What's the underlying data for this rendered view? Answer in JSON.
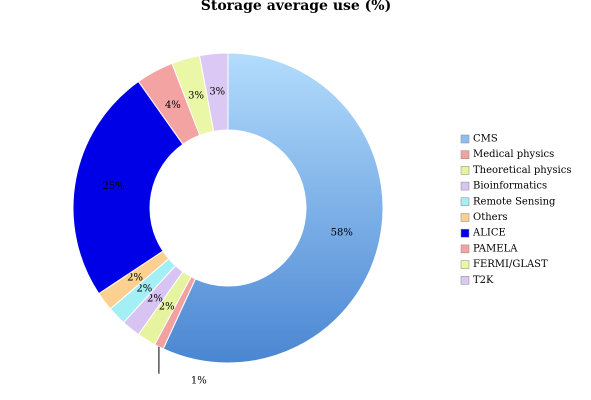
{
  "chart_data": {
    "type": "donut",
    "title": "Storage average use (%)",
    "categories": [
      "CMS",
      "Medical physics",
      "Theoretical physics",
      "Bioinformatics",
      "Remote Sensing",
      "Others",
      "ALICE",
      "PAMELA",
      "FERMI/GLAST",
      "T2K"
    ],
    "values": [
      58,
      1,
      2,
      2,
      2,
      2,
      25,
      4,
      3,
      3
    ],
    "value_labels": [
      "58%",
      "1%",
      "2%",
      "2%",
      "2%",
      "2%",
      "25%",
      "4%",
      "3%",
      "3%"
    ],
    "colors": [
      "#8fbdf0",
      "#f2a0a0",
      "#e6f4a0",
      "#d8c4f2",
      "#a4eef6",
      "#fcd090",
      "#0000e6",
      "#f4a3a3",
      "#e9f7a6",
      "#dcc8f4"
    ],
    "legend": "right"
  }
}
